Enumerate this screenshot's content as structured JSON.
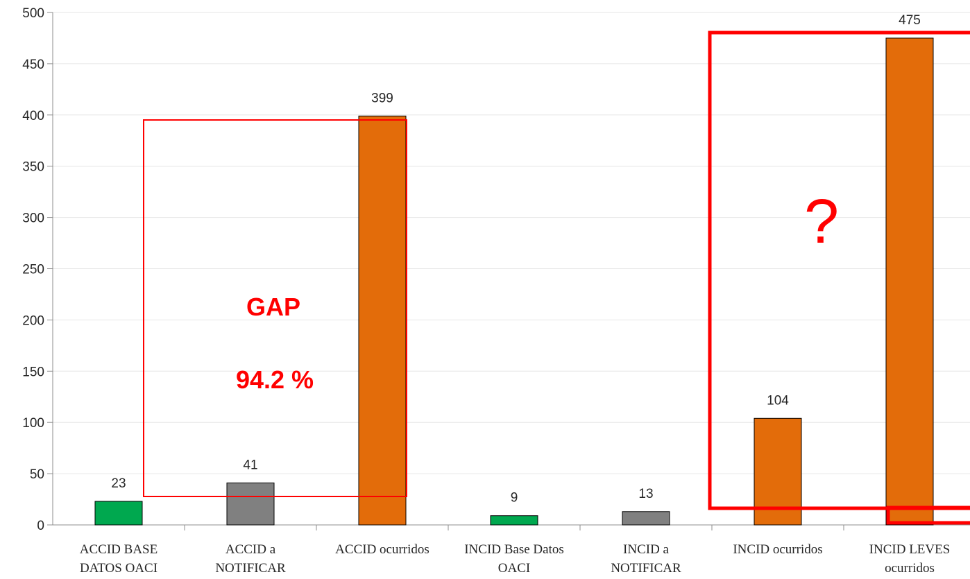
{
  "chart_data": {
    "type": "bar",
    "categories": [
      [
        "ACCID BASE",
        "DATOS OACI"
      ],
      [
        "ACCID a",
        "NOTIFICAR"
      ],
      [
        "ACCID ocurridos"
      ],
      [
        "INCID Base Datos",
        "OACI"
      ],
      [
        "INCID a",
        "NOTIFICAR"
      ],
      [
        "INCID ocurridos"
      ],
      [
        "INCID LEVES",
        "ocurridos"
      ]
    ],
    "values": [
      23,
      41,
      399,
      9,
      13,
      104,
      475
    ],
    "value_labels": [
      "23",
      "41",
      "399",
      "9",
      "13",
      "104",
      "475"
    ],
    "bar_colors": [
      "#00a84f",
      "#808080",
      "#e36c0a",
      "#00a84f",
      "#808080",
      "#e36c0a",
      "#e36c0a"
    ],
    "ylim": [
      0,
      500
    ],
    "y_ticks": [
      0,
      50,
      100,
      150,
      200,
      250,
      300,
      350,
      400,
      450,
      500
    ],
    "grid": true,
    "legend": "none",
    "annotations": {
      "gap_title": "GAP",
      "gap_value": "94.2 %",
      "question_mark": "?",
      "color": "#ff0000"
    }
  }
}
